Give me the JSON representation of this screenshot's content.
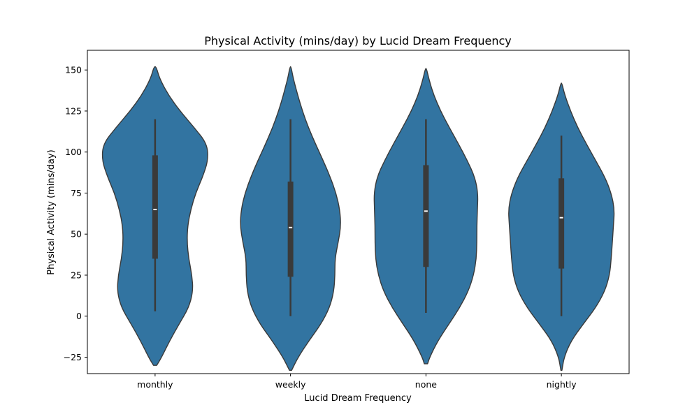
{
  "chart_data": {
    "type": "violin",
    "title": "Physical Activity (mins/day) by Lucid Dream Frequency",
    "xlabel": "Lucid Dream Frequency",
    "ylabel": "Physical Activity (mins/day)",
    "ylim": [
      -35,
      162
    ],
    "yticks": [
      -25,
      0,
      25,
      50,
      75,
      100,
      125,
      150
    ],
    "grid": false,
    "colors": {
      "violin_fill": "#3274a1",
      "violin_edge": "#3a3a3a",
      "box": "#3a3a3a",
      "median": "#ffffff"
    },
    "categories": [
      {
        "name": "monthly",
        "min": 3,
        "q1": 35,
        "median": 65,
        "q3": 98,
        "max": 120,
        "density": [
          [
            -30,
            0.03
          ],
          [
            -25,
            0.12
          ],
          [
            -15,
            0.27
          ],
          [
            -5,
            0.44
          ],
          [
            5,
            0.62
          ],
          [
            15,
            0.7
          ],
          [
            25,
            0.68
          ],
          [
            35,
            0.62
          ],
          [
            45,
            0.59
          ],
          [
            55,
            0.6
          ],
          [
            65,
            0.66
          ],
          [
            75,
            0.75
          ],
          [
            85,
            0.88
          ],
          [
            95,
            0.98
          ],
          [
            105,
            0.96
          ],
          [
            115,
            0.72
          ],
          [
            125,
            0.46
          ],
          [
            135,
            0.24
          ],
          [
            145,
            0.08
          ],
          [
            152,
            0.02
          ]
        ]
      },
      {
        "name": "weekly",
        "min": 0,
        "q1": 24,
        "median": 54,
        "q3": 82,
        "max": 120,
        "density": [
          [
            -33,
            0.02
          ],
          [
            -25,
            0.14
          ],
          [
            -15,
            0.34
          ],
          [
            -5,
            0.56
          ],
          [
            5,
            0.72
          ],
          [
            15,
            0.8
          ],
          [
            25,
            0.82
          ],
          [
            35,
            0.82
          ],
          [
            45,
            0.88
          ],
          [
            55,
            0.93
          ],
          [
            65,
            0.91
          ],
          [
            75,
            0.84
          ],
          [
            85,
            0.73
          ],
          [
            95,
            0.6
          ],
          [
            105,
            0.46
          ],
          [
            115,
            0.33
          ],
          [
            125,
            0.22
          ],
          [
            135,
            0.13
          ],
          [
            145,
            0.05
          ],
          [
            152,
            0.01
          ]
        ]
      },
      {
        "name": "none",
        "min": 2,
        "q1": 30,
        "median": 64,
        "q3": 92,
        "max": 120,
        "density": [
          [
            -29,
            0.03
          ],
          [
            -25,
            0.07
          ],
          [
            -15,
            0.22
          ],
          [
            -5,
            0.42
          ],
          [
            5,
            0.62
          ],
          [
            15,
            0.78
          ],
          [
            25,
            0.88
          ],
          [
            35,
            0.93
          ],
          [
            45,
            0.94
          ],
          [
            55,
            0.94
          ],
          [
            65,
            0.95
          ],
          [
            75,
            0.96
          ],
          [
            85,
            0.9
          ],
          [
            95,
            0.76
          ],
          [
            105,
            0.6
          ],
          [
            115,
            0.43
          ],
          [
            125,
            0.27
          ],
          [
            135,
            0.14
          ],
          [
            145,
            0.05
          ],
          [
            151,
            0.01
          ]
        ]
      },
      {
        "name": "nightly",
        "min": 0,
        "q1": 29,
        "median": 60,
        "q3": 84,
        "max": 110,
        "density": [
          [
            -33,
            0.01
          ],
          [
            -25,
            0.05
          ],
          [
            -15,
            0.18
          ],
          [
            -5,
            0.4
          ],
          [
            5,
            0.63
          ],
          [
            15,
            0.8
          ],
          [
            25,
            0.89
          ],
          [
            35,
            0.92
          ],
          [
            45,
            0.94
          ],
          [
            55,
            0.96
          ],
          [
            65,
            0.98
          ],
          [
            75,
            0.92
          ],
          [
            85,
            0.8
          ],
          [
            95,
            0.63
          ],
          [
            105,
            0.46
          ],
          [
            115,
            0.3
          ],
          [
            125,
            0.17
          ],
          [
            135,
            0.06
          ],
          [
            142,
            0.01
          ]
        ]
      }
    ]
  }
}
